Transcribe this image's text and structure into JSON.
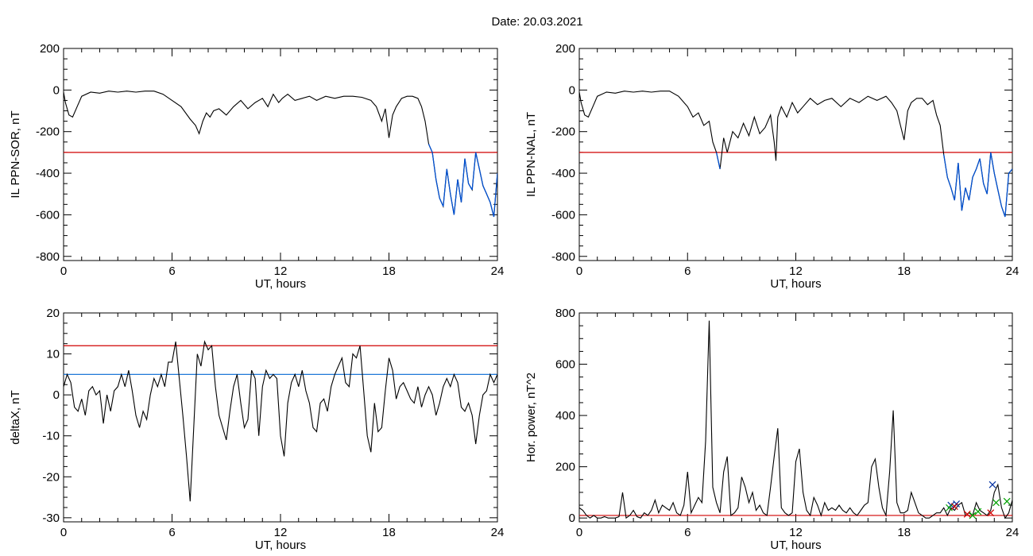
{
  "title": "Date:  20.03.2021",
  "chart_data": [
    {
      "type": "line",
      "ylabel": "IL PPN-SOR, nT",
      "xlabel": "UT, hours",
      "xlim": [
        0,
        24
      ],
      "ylim": [
        -820,
        200
      ],
      "xticks": [
        "0",
        "6",
        "12",
        "18",
        "24"
      ],
      "yticks": [
        "-800",
        "-600",
        "-400",
        "-200",
        "0",
        "200"
      ],
      "threshold_lines": [
        {
          "value": -300,
          "color": "#d00000"
        }
      ],
      "series": [
        {
          "color": "#000000",
          "highlight_color": "#0050d0",
          "highlight_below": -300,
          "x": [
            0,
            0.1,
            0.3,
            0.5,
            0.8,
            1.0,
            1.5,
            2.0,
            2.5,
            3.0,
            3.5,
            4.0,
            4.5,
            5.0,
            5.5,
            6.0,
            6.5,
            7.0,
            7.3,
            7.5,
            7.7,
            7.9,
            8.1,
            8.3,
            8.6,
            9.0,
            9.4,
            9.8,
            10.2,
            10.6,
            11.0,
            11.3,
            11.6,
            11.9,
            12.1,
            12.4,
            12.8,
            13.2,
            13.6,
            14.0,
            14.5,
            15.0,
            15.5,
            16.0,
            16.5,
            17.0,
            17.3,
            17.6,
            17.8,
            18.0,
            18.2,
            18.4,
            18.7,
            19.0,
            19.3,
            19.6,
            19.8,
            20.0,
            20.2,
            20.4,
            20.6,
            20.8,
            21.0,
            21.2,
            21.4,
            21.6,
            21.8,
            22.0,
            22.2,
            22.4,
            22.6,
            22.8,
            23.0,
            23.2,
            23.4,
            23.6,
            23.8,
            24.0
          ],
          "y": [
            -10,
            -60,
            -120,
            -130,
            -70,
            -30,
            -10,
            -15,
            -5,
            -10,
            -5,
            -10,
            -5,
            -5,
            -20,
            -50,
            -80,
            -140,
            -170,
            -210,
            -150,
            -110,
            -130,
            -100,
            -90,
            -120,
            -80,
            -50,
            -90,
            -60,
            -40,
            -80,
            -20,
            -60,
            -40,
            -20,
            -50,
            -40,
            -30,
            -50,
            -30,
            -40,
            -30,
            -30,
            -35,
            -50,
            -80,
            -150,
            -90,
            -230,
            -120,
            -80,
            -40,
            -30,
            -30,
            -40,
            -80,
            -150,
            -260,
            -300,
            -430,
            -520,
            -560,
            -380,
            -500,
            -600,
            -430,
            -540,
            -330,
            -450,
            -480,
            -300,
            -380,
            -460,
            -500,
            -540,
            -610,
            -400
          ]
        }
      ]
    },
    {
      "type": "line",
      "ylabel": "IL PPN-NAL, nT",
      "xlabel": "UT, hours",
      "xlim": [
        0,
        24
      ],
      "ylim": [
        -820,
        200
      ],
      "xticks": [
        "0",
        "6",
        "12",
        "18",
        "24"
      ],
      "yticks": [
        "-800",
        "-600",
        "-400",
        "-200",
        "0",
        "200"
      ],
      "threshold_lines": [
        {
          "value": -300,
          "color": "#d00000"
        }
      ],
      "series": [
        {
          "color": "#000000",
          "highlight_color": "#0050d0",
          "highlight_below": -300,
          "x": [
            0,
            0.1,
            0.3,
            0.5,
            0.8,
            1.0,
            1.5,
            2.0,
            2.5,
            3.0,
            3.5,
            4.0,
            4.5,
            5.0,
            5.5,
            6.0,
            6.3,
            6.6,
            6.9,
            7.2,
            7.4,
            7.6,
            7.8,
            8.0,
            8.2,
            8.5,
            8.8,
            9.1,
            9.4,
            9.7,
            10.0,
            10.3,
            10.6,
            10.8,
            10.9,
            11.0,
            11.2,
            11.5,
            11.8,
            12.1,
            12.4,
            12.8,
            13.2,
            13.6,
            14.0,
            14.5,
            15.0,
            15.5,
            16.0,
            16.5,
            17.0,
            17.3,
            17.6,
            17.8,
            18.0,
            18.2,
            18.4,
            18.7,
            19.0,
            19.3,
            19.6,
            19.8,
            20.0,
            20.2,
            20.4,
            20.6,
            20.8,
            21.0,
            21.2,
            21.4,
            21.6,
            21.8,
            22.0,
            22.2,
            22.4,
            22.6,
            22.8,
            23.0,
            23.2,
            23.4,
            23.6,
            23.8,
            24.0
          ],
          "y": [
            -10,
            -60,
            -120,
            -130,
            -70,
            -30,
            -10,
            -15,
            -5,
            -10,
            -5,
            -10,
            -5,
            -5,
            -30,
            -80,
            -130,
            -110,
            -170,
            -150,
            -250,
            -300,
            -380,
            -230,
            -300,
            -200,
            -230,
            -160,
            -220,
            -130,
            -210,
            -180,
            -120,
            -250,
            -340,
            -130,
            -80,
            -130,
            -60,
            -110,
            -80,
            -40,
            -70,
            -50,
            -40,
            -80,
            -40,
            -60,
            -30,
            -50,
            -30,
            -60,
            -100,
            -170,
            -240,
            -100,
            -60,
            -40,
            -40,
            -70,
            -50,
            -120,
            -170,
            -310,
            -420,
            -470,
            -530,
            -350,
            -580,
            -470,
            -530,
            -420,
            -380,
            -330,
            -450,
            -500,
            -300,
            -400,
            -480,
            -560,
            -610,
            -400,
            -380
          ]
        }
      ]
    },
    {
      "type": "line",
      "ylabel": "deltaX, nT",
      "xlabel": "UT, hours",
      "xlim": [
        0,
        24
      ],
      "ylim": [
        -31,
        20
      ],
      "xticks": [
        "0",
        "6",
        "12",
        "18",
        "24"
      ],
      "yticks": [
        "-30",
        "-20",
        "-10",
        "0",
        "10",
        "20"
      ],
      "threshold_lines": [
        {
          "value": 12,
          "color": "#d00000"
        },
        {
          "value": 5,
          "color": "#1e78d8"
        }
      ],
      "series": [
        {
          "color": "#000000",
          "x": [
            0,
            0.2,
            0.4,
            0.6,
            0.8,
            1.0,
            1.2,
            1.4,
            1.6,
            1.8,
            2.0,
            2.2,
            2.4,
            2.6,
            2.8,
            3.0,
            3.2,
            3.4,
            3.6,
            3.8,
            4.0,
            4.2,
            4.4,
            4.6,
            4.8,
            5.0,
            5.2,
            5.4,
            5.6,
            5.8,
            6.0,
            6.2,
            6.4,
            6.6,
            6.8,
            7.0,
            7.2,
            7.4,
            7.6,
            7.8,
            8.0,
            8.2,
            8.4,
            8.6,
            8.8,
            9.0,
            9.2,
            9.4,
            9.6,
            9.8,
            10.0,
            10.2,
            10.4,
            10.6,
            10.8,
            11.0,
            11.2,
            11.4,
            11.6,
            11.8,
            12.0,
            12.2,
            12.4,
            12.6,
            12.8,
            13.0,
            13.2,
            13.4,
            13.6,
            13.8,
            14.0,
            14.2,
            14.4,
            14.6,
            14.8,
            15.0,
            15.2,
            15.4,
            15.6,
            15.8,
            16.0,
            16.2,
            16.4,
            16.6,
            16.8,
            17.0,
            17.2,
            17.4,
            17.6,
            17.8,
            18.0,
            18.2,
            18.4,
            18.6,
            18.8,
            19.0,
            19.2,
            19.4,
            19.6,
            19.8,
            20.0,
            20.2,
            20.4,
            20.6,
            20.8,
            21.0,
            21.2,
            21.4,
            21.6,
            21.8,
            22.0,
            22.2,
            22.4,
            22.6,
            22.8,
            23.0,
            23.2,
            23.4,
            23.6,
            23.8,
            24.0
          ],
          "y": [
            2,
            5,
            3,
            -3,
            -4,
            -1,
            -5,
            1,
            2,
            0,
            1,
            -7,
            0,
            -4,
            1,
            2,
            5,
            2,
            6,
            1,
            -5,
            -8,
            -4,
            -6,
            0,
            4,
            2,
            5,
            2,
            8,
            8,
            13,
            4,
            -5,
            -15,
            -26,
            -8,
            10,
            7,
            13,
            11,
            12,
            2,
            -5,
            -8,
            -11,
            -4,
            2,
            5,
            -2,
            -8,
            -6,
            6,
            4,
            -10,
            2,
            6,
            4,
            5,
            4,
            -10,
            -15,
            -2,
            3,
            5,
            2,
            6,
            1,
            -2,
            -8,
            -9,
            -2,
            -1,
            -4,
            2,
            5,
            7,
            9,
            3,
            2,
            10,
            9,
            12,
            1,
            -10,
            -14,
            -2,
            -9,
            -8,
            1,
            9,
            6,
            -1,
            2,
            3,
            1,
            -1,
            -2,
            2,
            -3,
            0,
            2,
            0,
            -5,
            -2,
            2,
            4,
            2,
            5,
            3,
            -3,
            -4,
            -2,
            -5,
            -12,
            -5,
            0,
            1,
            5,
            3,
            5
          ]
        }
      ]
    },
    {
      "type": "line",
      "ylabel": "Hor. power, nT^2",
      "xlabel": "UT, hours",
      "xlim": [
        0,
        24
      ],
      "ylim": [
        -15,
        800
      ],
      "xticks": [
        "0",
        "6",
        "12",
        "18",
        "24"
      ],
      "yticks": [
        "0",
        "200",
        "400",
        "600",
        "800"
      ],
      "threshold_lines": [
        {
          "value": 10,
          "color": "#d00000"
        }
      ],
      "series": [
        {
          "color": "#000000",
          "x": [
            0,
            0.2,
            0.4,
            0.6,
            0.8,
            1.0,
            1.2,
            1.4,
            1.6,
            1.8,
            2.0,
            2.2,
            2.4,
            2.6,
            2.8,
            3.0,
            3.2,
            3.4,
            3.6,
            3.8,
            4.0,
            4.2,
            4.4,
            4.6,
            4.8,
            5.0,
            5.2,
            5.4,
            5.6,
            5.8,
            6.0,
            6.2,
            6.4,
            6.6,
            6.8,
            7.0,
            7.2,
            7.4,
            7.6,
            7.8,
            8.0,
            8.2,
            8.4,
            8.6,
            8.8,
            9.0,
            9.2,
            9.4,
            9.6,
            9.8,
            10.0,
            10.2,
            10.4,
            10.6,
            10.8,
            11.0,
            11.2,
            11.4,
            11.6,
            11.8,
            12.0,
            12.2,
            12.4,
            12.6,
            12.8,
            13.0,
            13.2,
            13.4,
            13.6,
            13.8,
            14.0,
            14.2,
            14.4,
            14.6,
            14.8,
            15.0,
            15.2,
            15.4,
            15.6,
            15.8,
            16.0,
            16.2,
            16.4,
            16.6,
            16.8,
            17.0,
            17.2,
            17.4,
            17.6,
            17.8,
            18.0,
            18.2,
            18.4,
            18.6,
            18.8,
            19.0,
            19.2,
            19.4,
            19.6,
            19.8,
            20.0,
            20.2,
            20.4,
            20.6,
            20.8,
            21.0,
            21.2,
            21.4,
            21.6,
            21.8,
            22.0,
            22.2,
            22.4,
            22.6,
            22.8,
            23.0,
            23.2,
            23.4,
            23.6,
            23.8,
            24.0
          ],
          "y": [
            40,
            30,
            10,
            0,
            10,
            0,
            0,
            5,
            0,
            0,
            0,
            5,
            100,
            0,
            10,
            30,
            5,
            0,
            20,
            10,
            30,
            70,
            20,
            50,
            40,
            30,
            60,
            20,
            10,
            50,
            180,
            20,
            50,
            80,
            60,
            300,
            770,
            120,
            60,
            20,
            180,
            240,
            10,
            20,
            40,
            160,
            120,
            60,
            100,
            30,
            50,
            20,
            10,
            120,
            240,
            350,
            40,
            20,
            10,
            20,
            220,
            270,
            100,
            30,
            10,
            80,
            50,
            10,
            60,
            30,
            40,
            30,
            50,
            30,
            20,
            40,
            20,
            10,
            30,
            50,
            60,
            200,
            230,
            120,
            40,
            10,
            180,
            420,
            60,
            20,
            20,
            30,
            100,
            60,
            20,
            10,
            0,
            0,
            10,
            20,
            20,
            40,
            10,
            40,
            30,
            50,
            60,
            10,
            20,
            10,
            60,
            30,
            20,
            10,
            30,
            100,
            130,
            40,
            0,
            20,
            70
          ]
        }
      ],
      "markers": [
        {
          "x": 20.6,
          "y": 50,
          "color": "#0030a0"
        },
        {
          "x": 20.9,
          "y": 55,
          "color": "#0030a0"
        },
        {
          "x": 22.9,
          "y": 130,
          "color": "#0030a0"
        },
        {
          "x": 20.8,
          "y": 45,
          "color": "#d00000"
        },
        {
          "x": 22.8,
          "y": 20,
          "color": "#d00000"
        },
        {
          "x": 21.5,
          "y": 15,
          "color": "#d00000"
        },
        {
          "x": 20.5,
          "y": 40,
          "color": "#00a000"
        },
        {
          "x": 21.8,
          "y": 10,
          "color": "#00a000"
        },
        {
          "x": 22.1,
          "y": 25,
          "color": "#00a000"
        },
        {
          "x": 23.1,
          "y": 60,
          "color": "#00a000"
        },
        {
          "x": 23.7,
          "y": 65,
          "color": "#00a000"
        }
      ]
    }
  ]
}
